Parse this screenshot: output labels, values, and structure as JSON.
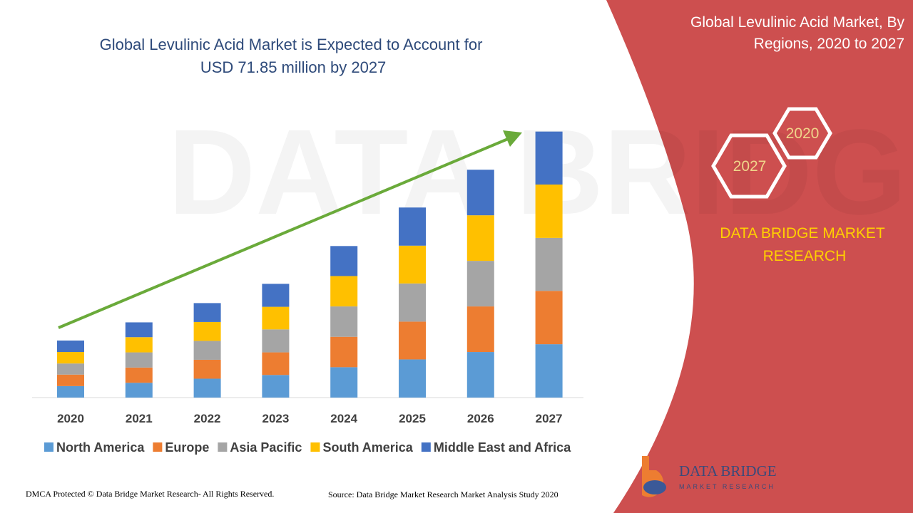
{
  "chart_data": {
    "type": "stacked_bar",
    "title": "Global Levulinic Acid Market is Expected to Account for USD 71.85 million by 2027",
    "categories": [
      "2020",
      "2021",
      "2022",
      "2023",
      "2024",
      "2025",
      "2026",
      "2027"
    ],
    "series": [
      {
        "name": "North America",
        "color": "#5b9bd5",
        "values": [
          3.1,
          4.0,
          5.1,
          6.1,
          8.2,
          10.3,
          12.3,
          14.4
        ]
      },
      {
        "name": "Europe",
        "color": "#ed7d31",
        "values": [
          3.1,
          4.1,
          5.1,
          6.1,
          8.2,
          10.2,
          12.3,
          14.4
        ]
      },
      {
        "name": "Asia Pacific",
        "color": "#a5a5a5",
        "values": [
          3.0,
          4.1,
          5.1,
          6.2,
          8.2,
          10.3,
          12.3,
          14.3
        ]
      },
      {
        "name": "South America",
        "color": "#ffc000",
        "values": [
          3.1,
          4.1,
          5.1,
          6.1,
          8.2,
          10.2,
          12.3,
          14.4
        ]
      },
      {
        "name": "Middle East and Africa",
        "color": "#4472c4",
        "values": [
          3.1,
          4.0,
          5.1,
          6.2,
          8.1,
          10.3,
          12.3,
          14.3
        ]
      }
    ],
    "ylim": [
      0,
      75
    ]
  },
  "side_panel": {
    "title": "Global Levulinic Acid Market, By Regions, 2020 to 2027",
    "hex_labels": [
      "2020",
      "2027"
    ],
    "brand": "DATA BRIDGE MARKET RESEARCH"
  },
  "logo": {
    "name": "DATA BRIDGE",
    "tagline": "MARKET RESEARCH"
  },
  "footer": {
    "copyright": "DMCA Protected © Data Bridge Market Research- All Rights Reserved.",
    "source": "Source: Data Bridge Market Research Market Analysis Study 2020"
  }
}
